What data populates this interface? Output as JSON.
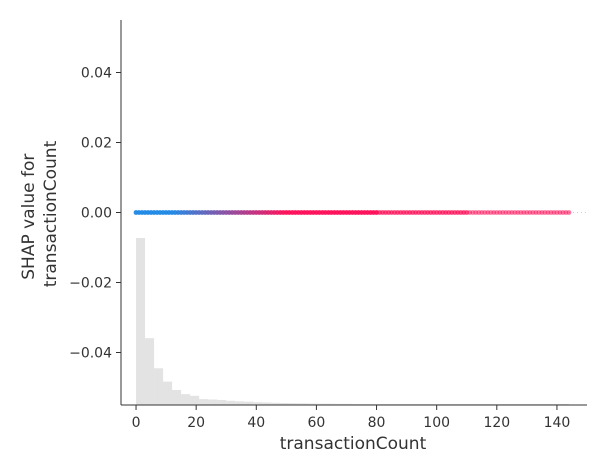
{
  "chart_data": {
    "type": "scatter",
    "title": "",
    "xlabel": "transactionCount",
    "ylabel_line1": "SHAP value for",
    "ylabel_line2": "transactionCount",
    "xlim": [
      -5,
      150
    ],
    "ylim": [
      -0.055,
      0.055
    ],
    "x_ticks": [
      0,
      20,
      40,
      60,
      80,
      100,
      120,
      140
    ],
    "x_tick_labels": [
      "0",
      "20",
      "40",
      "60",
      "80",
      "100",
      "120",
      "140"
    ],
    "y_ticks": [
      0.04,
      0.02,
      0.0,
      -0.02,
      -0.04
    ],
    "y_tick_labels": [
      "0.04",
      "0.02",
      "0.00",
      "−0.02",
      "−0.04"
    ],
    "grid": false,
    "series": [
      {
        "x_min": 0,
        "x_max": 144,
        "y": 0.0,
        "color_low": "#1e88e5",
        "color_high": "#ff0d57"
      }
    ],
    "histogram": {
      "bin_width": 3,
      "bin_starts": [
        0,
        3,
        6,
        9,
        12,
        15,
        18,
        21,
        24,
        27,
        30,
        33,
        36,
        39,
        42,
        45,
        48,
        51,
        54,
        57,
        60,
        63,
        66,
        69,
        72,
        75,
        78,
        81,
        84,
        87,
        90,
        93,
        96,
        99,
        102,
        105,
        108,
        111,
        114,
        117,
        120,
        123,
        126,
        129,
        132,
        135,
        138,
        141
      ],
      "relative_heights": [
        1.0,
        0.4,
        0.22,
        0.14,
        0.09,
        0.065,
        0.055,
        0.035,
        0.033,
        0.03,
        0.025,
        0.022,
        0.02,
        0.017,
        0.015,
        0.013,
        0.012,
        0.011,
        0.01,
        0.009,
        0.008,
        0.008,
        0.007,
        0.007,
        0.006,
        0.006,
        0.005,
        0.004,
        0.004,
        0.004,
        0.003,
        0.003,
        0.003,
        0.003,
        0.002,
        0.002,
        0.002,
        0.002,
        0.002,
        0.002,
        0.002,
        0.002,
        0.002,
        0.002,
        0.002,
        0.002,
        0.002,
        0.002
      ]
    },
    "colors": {
      "axis": "#333333",
      "histogram": "#cccccc",
      "baseline": "#999999"
    }
  }
}
